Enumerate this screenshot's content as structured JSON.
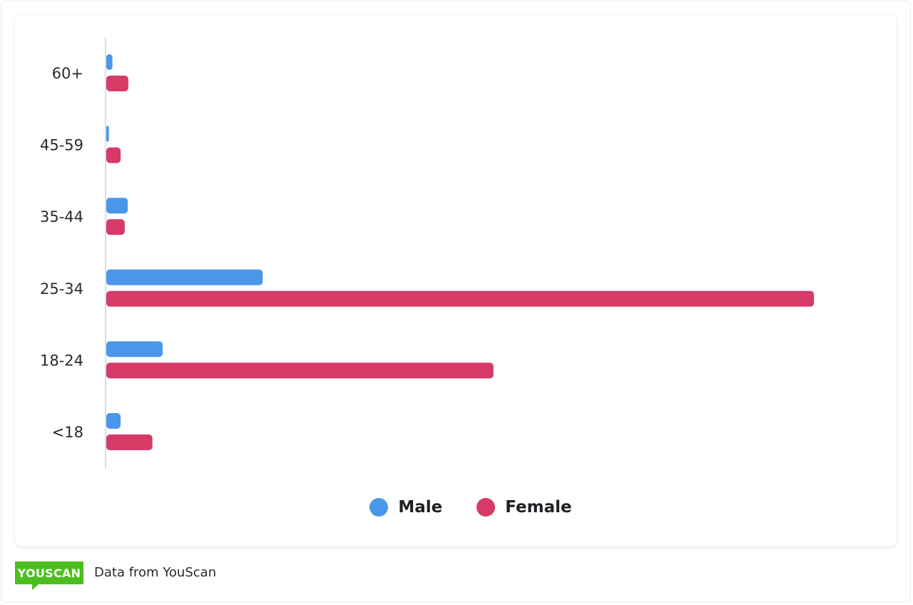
{
  "chart_data": {
    "type": "bar",
    "orientation": "horizontal",
    "categories": [
      "60+",
      "45-59",
      "35-44",
      "25-34",
      "18-24",
      "<18"
    ],
    "series": [
      {
        "name": "Male",
        "color": "#4a97ea",
        "values": [
          1.2,
          0.5,
          4.2,
          30.5,
          11.0,
          2.8
        ]
      },
      {
        "name": "Female",
        "color": "#d63a66",
        "values": [
          4.3,
          2.8,
          3.6,
          138.0,
          75.5,
          9.0
        ]
      }
    ],
    "legend_position": "bottom-center",
    "grid": false
  },
  "legend": {
    "male_label": "Male",
    "female_label": "Female",
    "male_color": "#4a97ea",
    "female_color": "#d63a66"
  },
  "footer": {
    "logo_text": "YOUSCAN",
    "source_text": "Data from YouScan"
  }
}
